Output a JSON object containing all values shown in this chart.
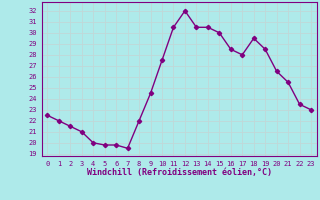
{
  "x": [
    0,
    1,
    2,
    3,
    4,
    5,
    6,
    7,
    8,
    9,
    10,
    11,
    12,
    13,
    14,
    15,
    16,
    17,
    18,
    19,
    20,
    21,
    22,
    23
  ],
  "y": [
    22.5,
    22.0,
    21.5,
    21.0,
    20.0,
    19.8,
    19.8,
    19.5,
    22.0,
    24.5,
    27.5,
    30.5,
    32.0,
    30.5,
    30.5,
    30.0,
    28.5,
    28.0,
    29.5,
    28.5,
    26.5,
    25.5,
    23.5,
    23.0
  ],
  "color": "#800080",
  "bg_color": "#aeeaea",
  "grid_color": "#c0d8d8",
  "xlabel": "Windchill (Refroidissement éolien,°C)",
  "ylabel_ticks": [
    19,
    20,
    21,
    22,
    23,
    24,
    25,
    26,
    27,
    28,
    29,
    30,
    31,
    32
  ],
  "xlim": [
    -0.5,
    23.5
  ],
  "ylim": [
    18.8,
    32.8
  ],
  "marker": "D",
  "markersize": 2.2,
  "linewidth": 1.0
}
